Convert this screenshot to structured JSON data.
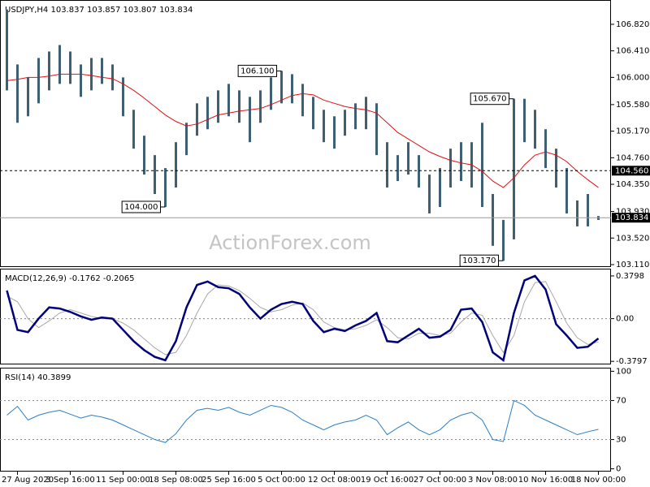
{
  "chart_data": [
    {
      "type": "ohlc",
      "title": "USDJPY,H4 103.837 103.857 103.807 103.834",
      "watermark": "ActionForex.com",
      "categories": [
        null,
        "27 Aug 2020",
        null,
        null,
        null,
        null,
        "3 Sep 16:00",
        null,
        null,
        null,
        null,
        "11 Sep 00:00",
        null,
        null,
        null,
        null,
        "18 Sep 08:00",
        null,
        null,
        null,
        null,
        "25 Sep 16:00",
        null,
        null,
        null,
        null,
        "5 Oct 00:00",
        null,
        null,
        null,
        null,
        "12 Oct 08:00",
        null,
        null,
        null,
        null,
        "19 Oct 16:00",
        null,
        null,
        null,
        null,
        "27 Oct 00:00",
        null,
        null,
        null,
        null,
        "3 Nov 08:00",
        null,
        null,
        null,
        null,
        "10 Nov 16:00",
        null,
        null,
        null,
        null,
        "18 Nov 00:00"
      ],
      "high": [
        107.05,
        106.2,
        106.0,
        106.3,
        106.4,
        106.5,
        106.4,
        106.2,
        106.3,
        106.3,
        106.2,
        106.0,
        105.5,
        105.1,
        104.8,
        104.6,
        105.0,
        105.3,
        105.6,
        105.7,
        105.8,
        105.9,
        105.8,
        105.7,
        105.8,
        106.0,
        106.1,
        106.05,
        105.9,
        105.7,
        105.5,
        105.4,
        105.5,
        105.6,
        105.7,
        105.6,
        105.0,
        104.8,
        105.0,
        104.8,
        104.5,
        104.6,
        104.9,
        105.0,
        105.0,
        105.3,
        104.2,
        103.8,
        105.67,
        105.67,
        105.5,
        105.2,
        104.9,
        104.6,
        104.1,
        104.2,
        103.86
      ],
      "low": [
        105.8,
        105.3,
        105.4,
        105.6,
        105.8,
        105.9,
        105.9,
        105.7,
        105.8,
        105.9,
        105.8,
        105.4,
        104.9,
        104.5,
        104.2,
        104.0,
        104.3,
        104.8,
        105.1,
        105.2,
        105.3,
        105.4,
        105.3,
        105.0,
        105.3,
        105.5,
        105.6,
        105.6,
        105.4,
        105.2,
        105.0,
        104.9,
        105.1,
        105.2,
        105.2,
        104.8,
        104.3,
        104.4,
        104.5,
        104.3,
        103.9,
        104.0,
        104.3,
        104.4,
        104.3,
        104.0,
        103.4,
        103.17,
        103.5,
        105.0,
        104.9,
        104.6,
        104.3,
        103.9,
        103.7,
        103.7,
        103.8
      ],
      "color": "#3f5f73",
      "overlay": {
        "color": "#e01010",
        "values": [
          105.95,
          105.97,
          106.0,
          106.0,
          106.02,
          106.05,
          106.05,
          106.05,
          106.03,
          106.0,
          105.98,
          105.9,
          105.8,
          105.68,
          105.55,
          105.42,
          105.32,
          105.25,
          105.28,
          105.35,
          105.42,
          105.45,
          105.48,
          105.5,
          105.52,
          105.58,
          105.65,
          105.72,
          105.75,
          105.73,
          105.65,
          105.6,
          105.55,
          105.52,
          105.5,
          105.45,
          105.3,
          105.15,
          105.05,
          104.95,
          104.85,
          104.78,
          104.72,
          104.68,
          104.65,
          104.55,
          104.4,
          104.3,
          104.45,
          104.65,
          104.8,
          104.85,
          104.8,
          104.7,
          104.55,
          104.42,
          104.3
        ]
      },
      "annotations": [
        {
          "value": 106.1,
          "label": "106.100"
        },
        {
          "value": 104.0,
          "label": "104.000"
        },
        {
          "value": 105.67,
          "label": "105.670"
        },
        {
          "value": 103.17,
          "label": "103.170"
        }
      ],
      "hlines": [
        {
          "value": 104.56,
          "label": "104.560",
          "style": "dashed"
        },
        {
          "value": 103.834,
          "label": "103.834",
          "style": "solid"
        }
      ],
      "ylim": [
        103.085,
        107.17
      ],
      "yticks": [
        {
          "value": 106.82,
          "label": "106.820"
        },
        {
          "value": 106.41,
          "label": "106.410"
        },
        {
          "value": 106.0,
          "label": "106.000"
        },
        {
          "value": 105.58,
          "label": "105.580"
        },
        {
          "value": 105.17,
          "label": "105.170"
        },
        {
          "value": 104.76,
          "label": "104.760"
        },
        {
          "value": 104.35,
          "label": "104.350"
        },
        {
          "value": 103.93,
          "label": "103.930"
        },
        {
          "value": 103.52,
          "label": "103.520"
        },
        {
          "value": 103.11,
          "label": "103.110"
        }
      ]
    },
    {
      "type": "macd",
      "title": "MACD(12,26,9) -0.1762 -0.2065",
      "series": [
        {
          "color": "#00007a",
          "values": [
            0.25,
            -0.1,
            -0.12,
            0.0,
            0.1,
            0.09,
            0.06,
            0.02,
            -0.01,
            0.01,
            0.0,
            -0.1,
            -0.2,
            -0.28,
            -0.34,
            -0.37,
            -0.2,
            0.1,
            0.3,
            0.33,
            0.28,
            0.27,
            0.22,
            0.1,
            0.0,
            0.08,
            0.13,
            0.15,
            0.13,
            -0.02,
            -0.12,
            -0.09,
            -0.11,
            -0.06,
            -0.02,
            0.05,
            -0.2,
            -0.21,
            -0.15,
            -0.09,
            -0.17,
            -0.16,
            -0.1,
            0.08,
            0.09,
            -0.03,
            -0.3,
            -0.37,
            0.05,
            0.34,
            0.38,
            0.26,
            -0.05,
            -0.15,
            -0.26,
            -0.25,
            -0.1762
          ]
        },
        {
          "color": "#a8a8a8",
          "values": [
            0.2,
            0.15,
            0.0,
            -0.08,
            -0.02,
            0.05,
            0.08,
            0.05,
            0.02,
            0.0,
            0.0,
            -0.04,
            -0.1,
            -0.18,
            -0.26,
            -0.32,
            -0.3,
            -0.15,
            0.05,
            0.22,
            0.3,
            0.29,
            0.25,
            0.18,
            0.1,
            0.06,
            0.08,
            0.12,
            0.14,
            0.08,
            -0.03,
            -0.08,
            -0.1,
            -0.09,
            -0.06,
            -0.01,
            -0.08,
            -0.17,
            -0.18,
            -0.13,
            -0.13,
            -0.15,
            -0.13,
            -0.03,
            0.05,
            0.03,
            -0.15,
            -0.3,
            -0.15,
            0.15,
            0.32,
            0.33,
            0.15,
            -0.04,
            -0.17,
            -0.23,
            -0.2065
          ]
        }
      ],
      "ylim": [
        -0.4,
        0.43
      ],
      "yticks": [
        0.3798,
        {
          "value": 0,
          "label": "0.00"
        },
        -0.3797
      ],
      "levels": [
        0
      ]
    },
    {
      "type": "line",
      "title": "RSI(14) 40.3899",
      "color": "#2a7fc4",
      "values": [
        55,
        64,
        50,
        55,
        58,
        60,
        56,
        52,
        55,
        53,
        50,
        45,
        40,
        35,
        30,
        27,
        36,
        50,
        60,
        62,
        60,
        63,
        58,
        55,
        60,
        65,
        63,
        58,
        50,
        45,
        40,
        45,
        48,
        50,
        55,
        50,
        35,
        42,
        48,
        40,
        35,
        40,
        50,
        55,
        58,
        50,
        30,
        28,
        70,
        65,
        55,
        50,
        45,
        40,
        35,
        38,
        40.3899
      ],
      "ylim": [
        -2,
        102
      ],
      "yticks": [
        100,
        70,
        30,
        0
      ],
      "levels": [
        70,
        30
      ]
    }
  ]
}
